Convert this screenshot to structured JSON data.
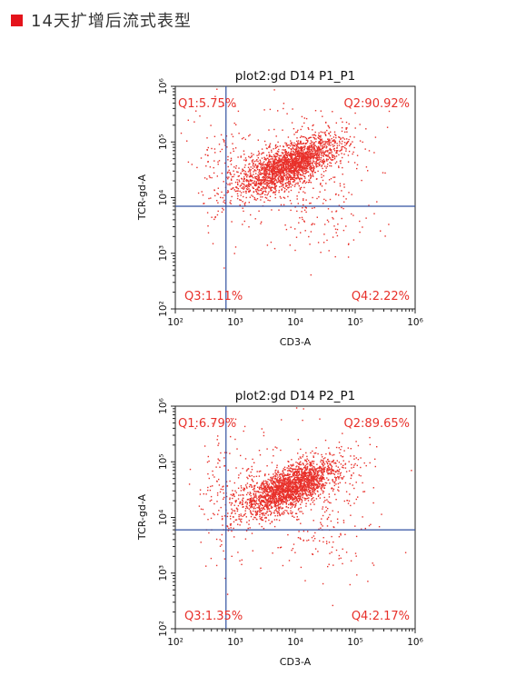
{
  "header": {
    "title": "14天扩增后流式表型",
    "accent": "#e4131b"
  },
  "chart_data": [
    {
      "type": "scatter",
      "title": "plot2:gd D14  P1_P1",
      "xlabel": "CD3-A",
      "ylabel": "TCR-gd-A",
      "xscale": "log",
      "yscale": "log",
      "xlim": [
        100,
        1000000
      ],
      "ylim": [
        100,
        1000000
      ],
      "x_ticks": [
        "10²",
        "10³",
        "10⁴",
        "10⁵",
        "10⁶"
      ],
      "y_ticks": [
        "10²",
        "10³",
        "10⁴",
        "10⁵",
        "10⁶"
      ],
      "gate": {
        "x": 700,
        "y": 7000
      },
      "quadrants": {
        "q1": "Q1:5.75%",
        "q2": "Q2:90.92%",
        "q3": "Q3:1.11%",
        "q4": "Q4:2.22%"
      },
      "cluster": {
        "center_x": 8000,
        "center_y": 40000
      },
      "dot_color": "#e8302a",
      "line_color": "#3050a0"
    },
    {
      "type": "scatter",
      "title": "plot2:gd D14  P2_P1",
      "xlabel": "CD3-A",
      "ylabel": "TCR-gd-A",
      "xscale": "log",
      "yscale": "log",
      "xlim": [
        100,
        1000000
      ],
      "ylim": [
        100,
        1000000
      ],
      "x_ticks": [
        "10²",
        "10³",
        "10⁴",
        "10⁵",
        "10⁶"
      ],
      "y_ticks": [
        "10²",
        "10³",
        "10⁴",
        "10⁵",
        "10⁶"
      ],
      "gate": {
        "x": 700,
        "y": 6000
      },
      "quadrants": {
        "q1": "Q1:6.79%",
        "q2": "Q2:89.65%",
        "q3": "Q3:1.35%",
        "q4": "Q4:2.17%"
      },
      "cluster": {
        "center_x": 8000,
        "center_y": 35000
      },
      "dot_color": "#e8302a",
      "line_color": "#3050a0"
    }
  ]
}
